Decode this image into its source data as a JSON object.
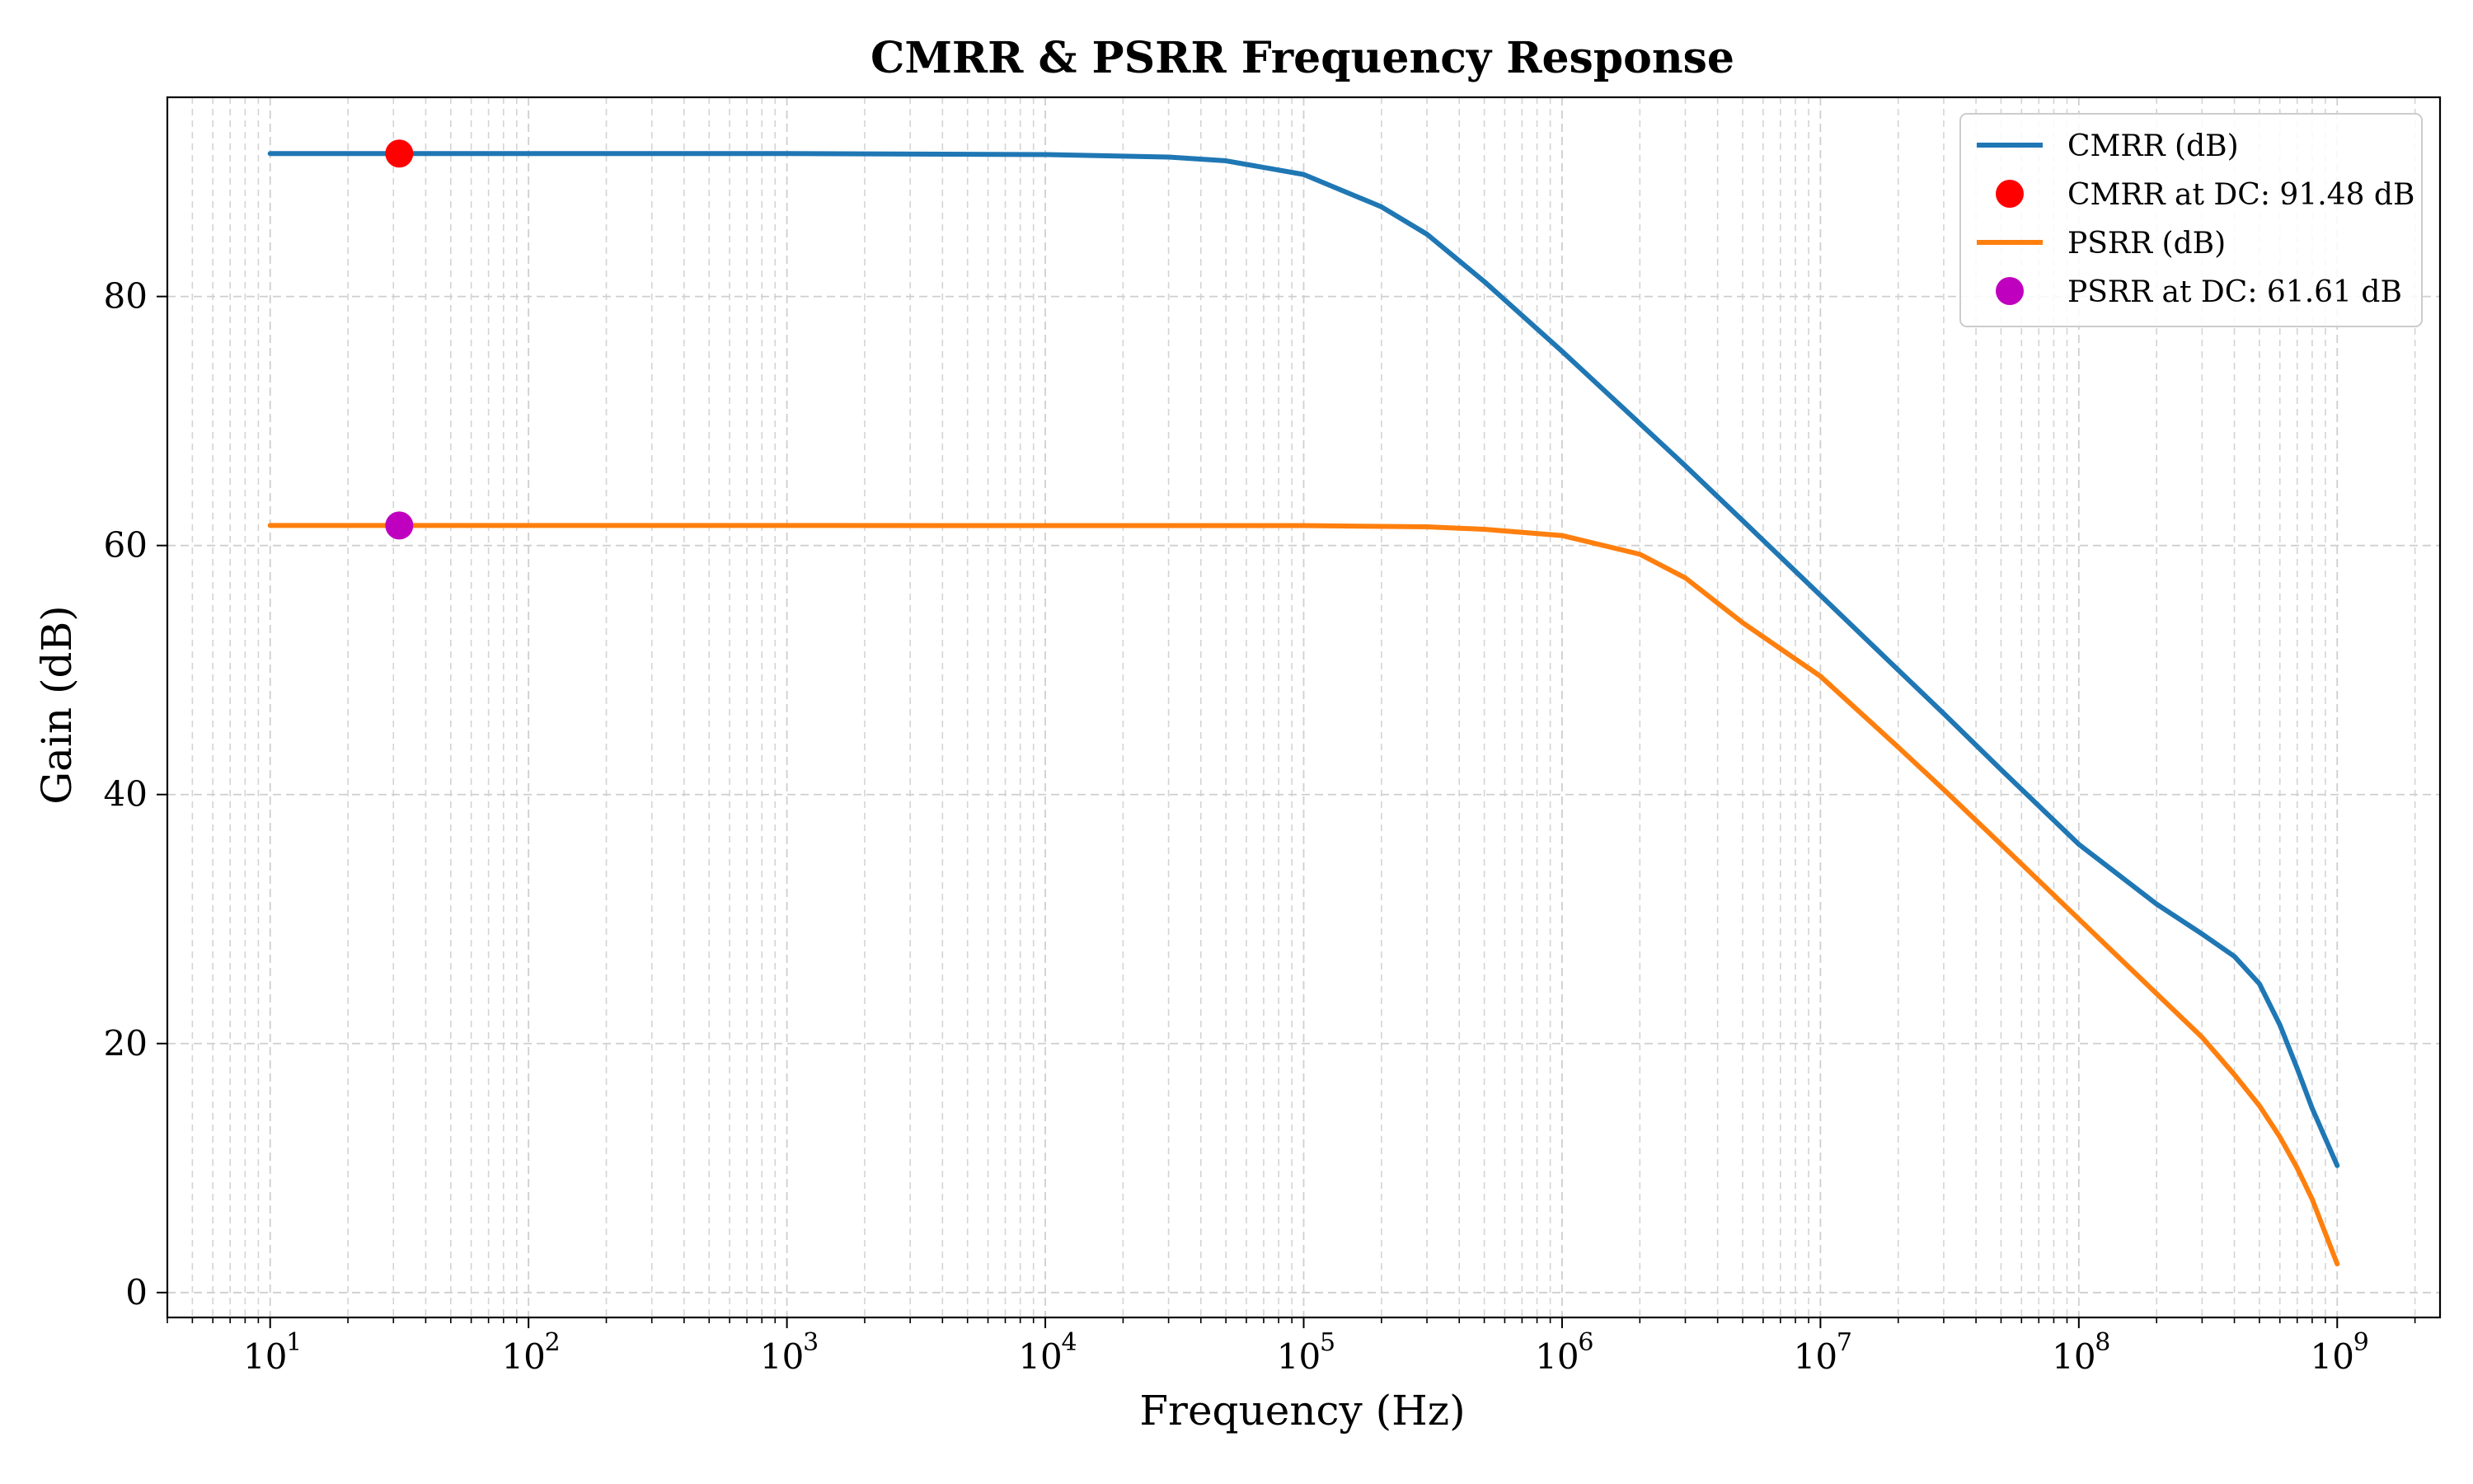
{
  "chart_data": {
    "type": "line",
    "title": "CMRR & PSRR Frequency Response",
    "xlabel": "Frequency (Hz)",
    "ylabel": "Gain (dB)",
    "x_scale": "log",
    "xlim": [
      4,
      2500000000
    ],
    "ylim": [
      -2,
      96
    ],
    "x_ticks": [
      10,
      100,
      1000,
      10000,
      100000,
      1000000,
      10000000,
      100000000,
      1000000000
    ],
    "x_tick_labels": [
      {
        "base": "10",
        "exp": "1"
      },
      {
        "base": "10",
        "exp": "2"
      },
      {
        "base": "10",
        "exp": "3"
      },
      {
        "base": "10",
        "exp": "4"
      },
      {
        "base": "10",
        "exp": "5"
      },
      {
        "base": "10",
        "exp": "6"
      },
      {
        "base": "10",
        "exp": "7"
      },
      {
        "base": "10",
        "exp": "8"
      },
      {
        "base": "10",
        "exp": "9"
      }
    ],
    "y_ticks": [
      0,
      20,
      40,
      60,
      80
    ],
    "y_tick_labels": [
      "0",
      "20",
      "40",
      "60",
      "80"
    ],
    "grid": true,
    "legend_position": "top-right",
    "series": [
      {
        "name": "CMRR (dB)",
        "color": "#1f77b4",
        "kind": "line",
        "points": [
          [
            10,
            91.48
          ],
          [
            100,
            91.48
          ],
          [
            1000,
            91.48
          ],
          [
            10000,
            91.4
          ],
          [
            30000,
            91.2
          ],
          [
            50000,
            90.9
          ],
          [
            100000,
            89.8
          ],
          [
            200000,
            87.2
          ],
          [
            300000,
            85.0
          ],
          [
            500000,
            81.2
          ],
          [
            1000000,
            75.6
          ],
          [
            2000000,
            69.8
          ],
          [
            3000000,
            66.4
          ],
          [
            5000000,
            62.0
          ],
          [
            10000000,
            56.0
          ],
          [
            20000000,
            50.0
          ],
          [
            30000000,
            46.5
          ],
          [
            50000000,
            42.0
          ],
          [
            100000000,
            36.0
          ],
          [
            200000000,
            31.2
          ],
          [
            300000000,
            28.8
          ],
          [
            400000000,
            27.0
          ],
          [
            500000000,
            24.8
          ],
          [
            600000000,
            21.5
          ],
          [
            700000000,
            18.0
          ],
          [
            800000000,
            14.8
          ],
          [
            1000000000,
            10.2
          ]
        ]
      },
      {
        "name": "CMRR at DC: 91.48 dB",
        "color": "#ff0000",
        "kind": "marker",
        "points": [
          [
            31.6,
            91.48
          ]
        ]
      },
      {
        "name": "PSRR (dB)",
        "color": "#ff7f0e",
        "kind": "line",
        "points": [
          [
            10,
            61.61
          ],
          [
            100,
            61.61
          ],
          [
            1000,
            61.61
          ],
          [
            10000,
            61.6
          ],
          [
            100000,
            61.6
          ],
          [
            300000,
            61.5
          ],
          [
            500000,
            61.3
          ],
          [
            1000000,
            60.8
          ],
          [
            2000000,
            59.3
          ],
          [
            3000000,
            57.4
          ],
          [
            5000000,
            53.8
          ],
          [
            10000000,
            49.5
          ],
          [
            20000000,
            43.8
          ],
          [
            30000000,
            40.4
          ],
          [
            50000000,
            36.0
          ],
          [
            100000000,
            30.0
          ],
          [
            200000000,
            24.0
          ],
          [
            300000000,
            20.5
          ],
          [
            400000000,
            17.5
          ],
          [
            500000000,
            15.0
          ],
          [
            600000000,
            12.5
          ],
          [
            700000000,
            10.0
          ],
          [
            800000000,
            7.5
          ],
          [
            1000000000,
            2.3
          ]
        ]
      },
      {
        "name": "PSRR at DC: 61.61 dB",
        "color": "#bf00bf",
        "kind": "marker",
        "points": [
          [
            31.6,
            61.61
          ]
        ]
      }
    ]
  }
}
